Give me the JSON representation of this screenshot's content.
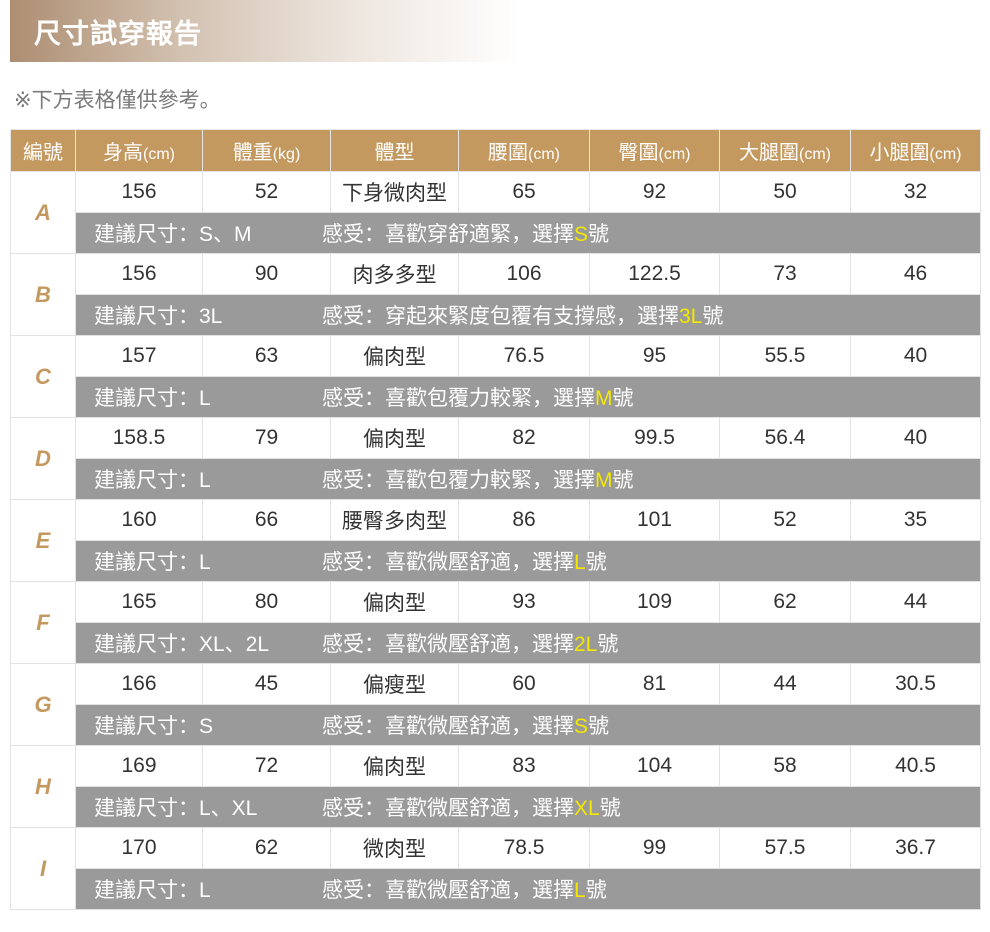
{
  "title": "尺寸試穿報告",
  "note": "※下方表格僅供參考。",
  "colors": {
    "header": "#c4995f",
    "gray_row": "#999a99",
    "highlight": "#f4e800"
  },
  "headers": [
    {
      "label": "編號",
      "unit": ""
    },
    {
      "label": "身高",
      "unit": "(cm)"
    },
    {
      "label": "體重",
      "unit": "(kg)"
    },
    {
      "label": "體型",
      "unit": ""
    },
    {
      "label": "腰圍",
      "unit": "(cm)"
    },
    {
      "label": "臀圍",
      "unit": "(cm)"
    },
    {
      "label": "大腿圍",
      "unit": "(cm)"
    },
    {
      "label": "小腿圍",
      "unit": "(cm)"
    }
  ],
  "rows": [
    {
      "id": "A",
      "height": "156",
      "weight": "52",
      "body": "下身微肉型",
      "waist": "65",
      "hip": "92",
      "thigh": "50",
      "calf": "32",
      "suggest": "建議尺寸：S、M",
      "feel": "感受：喜歡穿舒適緊，選擇",
      "choice": "S",
      "suffix": "號"
    },
    {
      "id": "B",
      "height": "156",
      "weight": "90",
      "body": "肉多多型",
      "waist": "106",
      "hip": "122.5",
      "thigh": "73",
      "calf": "46",
      "suggest": "建議尺寸：3L",
      "feel": "感受：穿起來緊度包覆有支撐感，選擇",
      "choice": "3L",
      "suffix": "號"
    },
    {
      "id": "C",
      "height": "157",
      "weight": "63",
      "body": "偏肉型",
      "waist": "76.5",
      "hip": "95",
      "thigh": "55.5",
      "calf": "40",
      "suggest": "建議尺寸：L",
      "feel": "感受：喜歡包覆力較緊，選擇",
      "choice": "M",
      "suffix": "號"
    },
    {
      "id": "D",
      "height": "158.5",
      "weight": "79",
      "body": "偏肉型",
      "waist": "82",
      "hip": "99.5",
      "thigh": "56.4",
      "calf": "40",
      "suggest": "建議尺寸：L",
      "feel": "感受：喜歡包覆力較緊，選擇",
      "choice": "M",
      "suffix": "號"
    },
    {
      "id": "E",
      "height": "160",
      "weight": "66",
      "body": "腰臀多肉型",
      "waist": "86",
      "hip": "101",
      "thigh": "52",
      "calf": "35",
      "suggest": "建議尺寸：L",
      "feel": "感受：喜歡微壓舒適，選擇",
      "choice": "L",
      "suffix": "號"
    },
    {
      "id": "F",
      "height": "165",
      "weight": "80",
      "body": "偏肉型",
      "waist": "93",
      "hip": "109",
      "thigh": "62",
      "calf": "44",
      "suggest": "建議尺寸：XL、2L",
      "feel": "感受：喜歡微壓舒適，選擇",
      "choice": "2L",
      "suffix": "號"
    },
    {
      "id": "G",
      "height": "166",
      "weight": "45",
      "body": "偏瘦型",
      "waist": "60",
      "hip": "81",
      "thigh": "44",
      "calf": "30.5",
      "suggest": "建議尺寸：S",
      "feel": "感受：喜歡微壓舒適，選擇",
      "choice": "S",
      "suffix": "號"
    },
    {
      "id": "H",
      "height": "169",
      "weight": "72",
      "body": "偏肉型",
      "waist": "83",
      "hip": "104",
      "thigh": "58",
      "calf": "40.5",
      "suggest": "建議尺寸：L、XL",
      "feel": "感受：喜歡微壓舒適，選擇",
      "choice": "XL",
      "suffix": "號"
    },
    {
      "id": "I",
      "height": "170",
      "weight": "62",
      "body": "微肉型",
      "waist": "78.5",
      "hip": "99",
      "thigh": "57.5",
      "calf": "36.7",
      "suggest": "建議尺寸：L",
      "feel": "感受：喜歡微壓舒適，選擇",
      "choice": "L",
      "suffix": "號"
    }
  ]
}
